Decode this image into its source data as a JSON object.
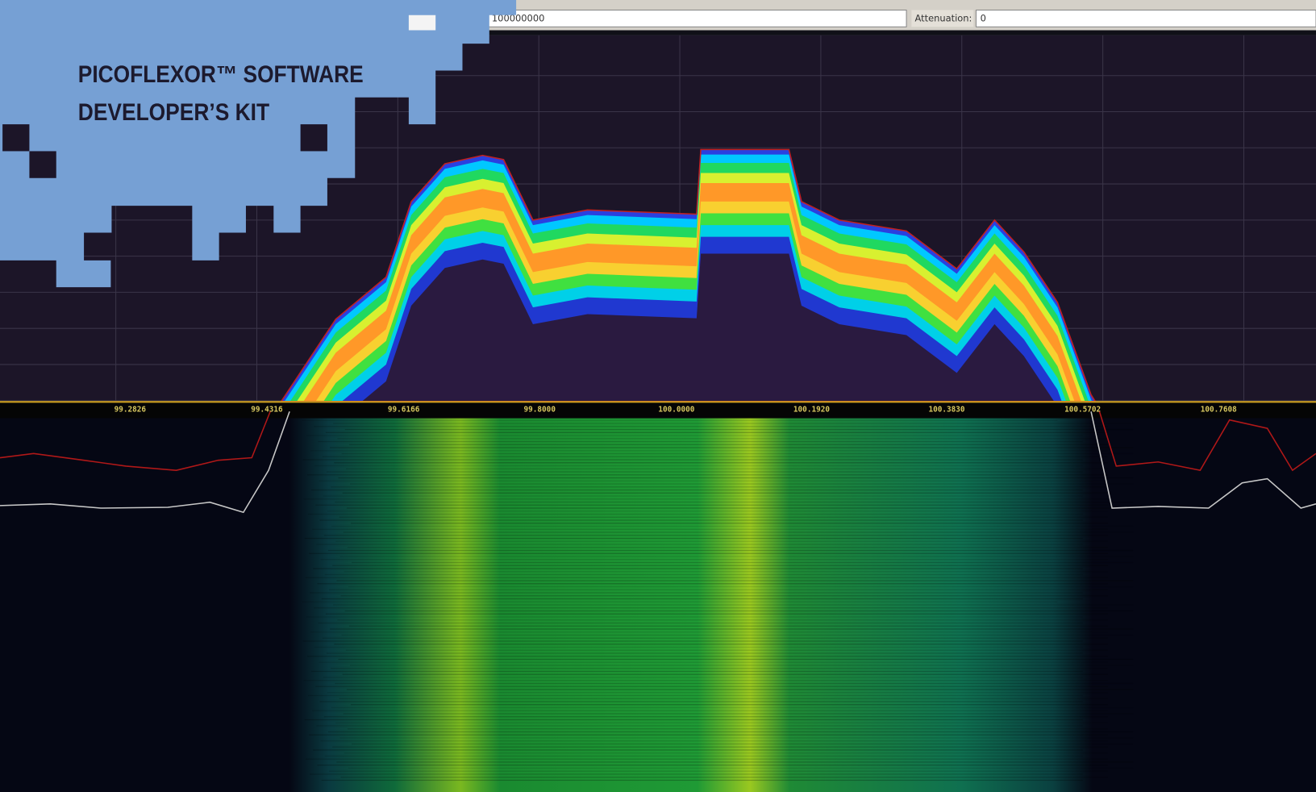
{
  "header": {
    "title_lines": [
      "PICOFLEXOR™ SOFTWARE",
      "DEVELOPER’S KIT"
    ]
  },
  "toolbar": {
    "frequency_value": "100000000",
    "attenuation_label": "Attenuation:",
    "attenuation_value": "0"
  },
  "axis_labels": [
    "99.2826",
    "99.4316",
    "99.6166",
    "99.8000",
    "100.0000",
    "100.1920",
    "100.3830",
    "100.5702",
    "100.7608"
  ]
}
